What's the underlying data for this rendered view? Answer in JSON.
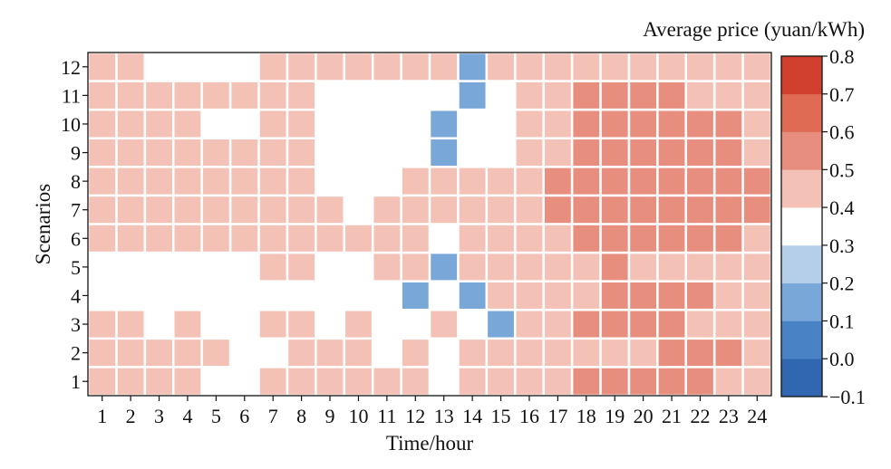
{
  "chart_data": {
    "type": "heatmap",
    "xlabel": "Time/hour",
    "ylabel": "Scenarios",
    "x_categories": [
      "1",
      "2",
      "3",
      "4",
      "5",
      "6",
      "7",
      "8",
      "9",
      "10",
      "11",
      "12",
      "13",
      "14",
      "15",
      "16",
      "17",
      "18",
      "19",
      "20",
      "21",
      "22",
      "23",
      "24"
    ],
    "y_categories": [
      "12",
      "11",
      "10",
      "9",
      "8",
      "7",
      "6",
      "5",
      "4",
      "3",
      "2",
      "1"
    ],
    "colorbar": {
      "title": "Average price (yuan/kWh)",
      "ticks": [
        "0.8",
        "0.7",
        "0.6",
        "0.5",
        "0.4",
        "0.3",
        "0.2",
        "0.1",
        "0.0",
        "−0.1"
      ],
      "min": -0.1,
      "max": 0.8,
      "colors": [
        "#3166b0",
        "#4a83c5",
        "#78a7d8",
        "#b5cfeb",
        "#ffffff",
        "#f3c1b6",
        "#e88e7e",
        "#df6b55",
        "#d1402f"
      ]
    },
    "values": [
      [
        0.45,
        0.45,
        null,
        null,
        null,
        null,
        0.45,
        0.45,
        0.45,
        0.45,
        0.45,
        0.45,
        0.45,
        0.15,
        0.45,
        0.45,
        0.45,
        0.45,
        0.45,
        0.45,
        0.45,
        0.45,
        0.45,
        0.45
      ],
      [
        0.45,
        0.45,
        0.45,
        0.45,
        0.45,
        0.45,
        0.45,
        0.45,
        null,
        null,
        null,
        null,
        null,
        0.15,
        null,
        0.45,
        0.45,
        0.55,
        0.55,
        0.55,
        0.55,
        0.45,
        0.45,
        0.45
      ],
      [
        0.45,
        0.45,
        0.45,
        0.45,
        null,
        null,
        0.45,
        0.45,
        null,
        null,
        null,
        null,
        0.15,
        null,
        null,
        0.45,
        0.45,
        0.55,
        0.55,
        0.55,
        0.55,
        0.55,
        0.55,
        0.45
      ],
      [
        0.45,
        0.45,
        0.45,
        0.45,
        0.45,
        0.45,
        0.45,
        0.45,
        null,
        null,
        null,
        null,
        0.15,
        null,
        null,
        0.45,
        0.45,
        0.55,
        0.55,
        0.55,
        0.55,
        0.55,
        0.55,
        0.45
      ],
      [
        0.45,
        0.45,
        0.45,
        0.45,
        0.45,
        0.45,
        0.45,
        0.45,
        null,
        null,
        null,
        0.45,
        0.45,
        0.45,
        0.45,
        0.45,
        0.55,
        0.55,
        0.55,
        0.55,
        0.55,
        0.55,
        0.55,
        0.55
      ],
      [
        0.45,
        0.45,
        0.45,
        0.45,
        0.45,
        0.45,
        0.45,
        0.45,
        0.45,
        null,
        0.45,
        0.45,
        0.45,
        0.45,
        0.45,
        0.45,
        0.55,
        0.55,
        0.55,
        0.55,
        0.55,
        0.55,
        0.55,
        0.55
      ],
      [
        0.45,
        0.45,
        0.45,
        0.45,
        0.45,
        0.45,
        0.45,
        0.45,
        0.45,
        0.45,
        0.45,
        0.45,
        null,
        0.45,
        0.45,
        0.45,
        0.45,
        0.55,
        0.55,
        0.55,
        0.55,
        0.55,
        0.55,
        0.45
      ],
      [
        null,
        null,
        null,
        null,
        null,
        null,
        0.45,
        0.45,
        null,
        null,
        0.45,
        0.45,
        0.15,
        0.45,
        0.45,
        0.45,
        0.45,
        0.45,
        0.55,
        0.45,
        0.45,
        0.45,
        0.45,
        0.45
      ],
      [
        null,
        null,
        null,
        null,
        null,
        null,
        null,
        null,
        null,
        null,
        null,
        0.15,
        null,
        0.15,
        0.45,
        0.45,
        0.45,
        0.45,
        0.55,
        0.55,
        0.55,
        0.55,
        0.45,
        0.45
      ],
      [
        0.45,
        0.45,
        null,
        0.45,
        null,
        null,
        0.45,
        0.45,
        null,
        0.45,
        null,
        null,
        0.45,
        null,
        0.15,
        0.45,
        0.45,
        0.55,
        0.55,
        0.55,
        0.55,
        0.45,
        0.45,
        0.45
      ],
      [
        0.45,
        0.45,
        0.45,
        0.45,
        0.45,
        null,
        null,
        0.45,
        0.45,
        0.45,
        null,
        0.45,
        null,
        0.45,
        0.45,
        0.45,
        0.45,
        0.45,
        0.45,
        0.45,
        0.55,
        0.55,
        0.55,
        0.45
      ],
      [
        0.45,
        0.45,
        0.45,
        0.45,
        null,
        null,
        0.45,
        0.45,
        0.45,
        0.45,
        0.45,
        0.45,
        null,
        0.45,
        0.45,
        0.45,
        0.45,
        0.55,
        0.55,
        0.55,
        0.55,
        0.55,
        0.45,
        0.45
      ]
    ]
  }
}
